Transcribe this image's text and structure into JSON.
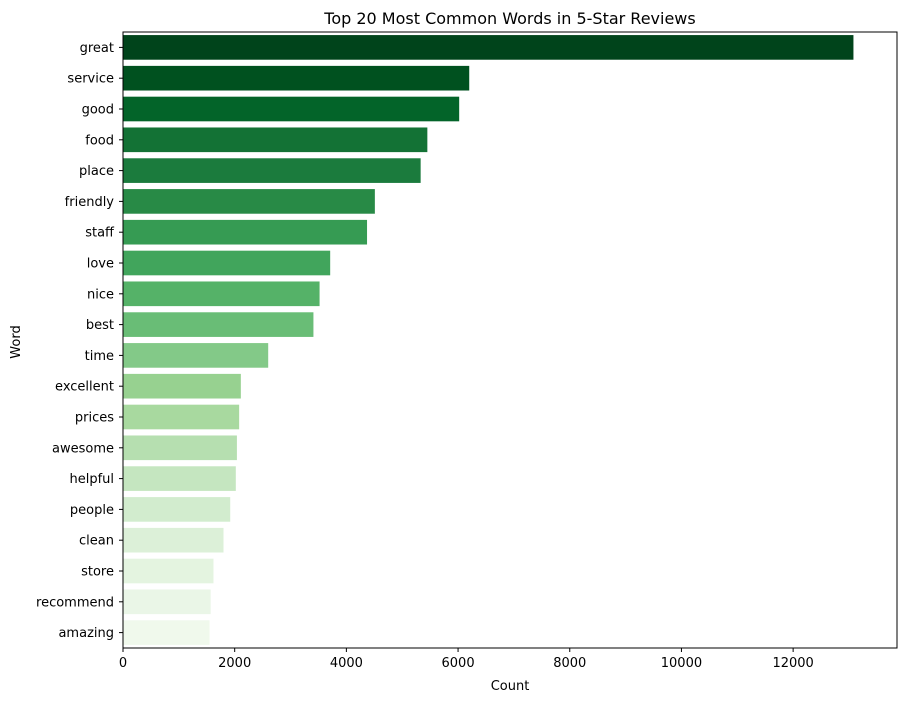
{
  "chart_data": {
    "type": "bar",
    "orientation": "horizontal",
    "title": "Top 20 Most Common Words in 5-Star Reviews",
    "xlabel": "Count",
    "ylabel": "Word",
    "xlim": [
      0,
      13860
    ],
    "xticks": [
      0,
      2000,
      4000,
      6000,
      8000,
      10000,
      12000
    ],
    "grid": false,
    "legend": "none",
    "categories": [
      "great",
      "service",
      "good",
      "food",
      "place",
      "friendly",
      "staff",
      "love",
      "nice",
      "best",
      "time",
      "excellent",
      "prices",
      "awesome",
      "helpful",
      "people",
      "clean",
      "store",
      "recommend",
      "amazing"
    ],
    "values": [
      13080,
      6200,
      6020,
      5450,
      5330,
      4510,
      4370,
      3710,
      3520,
      3410,
      2600,
      2110,
      2080,
      2040,
      2020,
      1920,
      1800,
      1620,
      1570,
      1550
    ],
    "colors": [
      "#00441b",
      "#00511f",
      "#036429",
      "#137235",
      "#1b7b3d",
      "#288a46",
      "#369b53",
      "#41a55c",
      "#55b268",
      "#69bd76",
      "#83c988",
      "#97d190",
      "#a8d99f",
      "#b6dfb0",
      "#c5e6c0",
      "#d2ecce",
      "#dcf0d8",
      "#e4f4e0",
      "#eaf6e7",
      "#f0f9ec"
    ],
    "axis_color": "#000000"
  }
}
